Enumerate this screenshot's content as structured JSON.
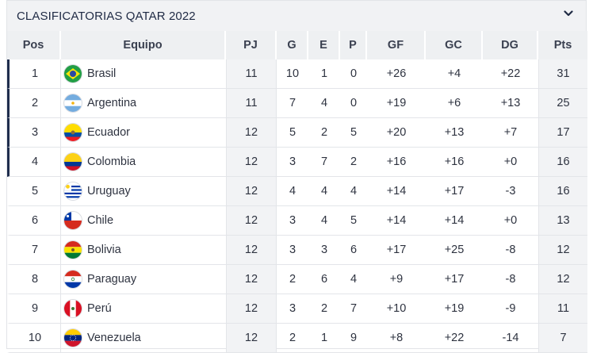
{
  "widget": {
    "title": "CLASIFICATORIAS QATAR 2022",
    "toggle_icon": "chevron-down-icon"
  },
  "columns": {
    "pos": "Pos",
    "team": "Equipo",
    "pj": "PJ",
    "g": "G",
    "e": "E",
    "p": "P",
    "gf": "GF",
    "gc": "GC",
    "dg": "DG",
    "pts": "Pts"
  },
  "rows": [
    {
      "pos": "1",
      "team": "Brasil",
      "flag": "brazil-flag-icon",
      "pj": "11",
      "g": "10",
      "e": "1",
      "p": "0",
      "gf": "+26",
      "gc": "+4",
      "dg": "+22",
      "pts": "31"
    },
    {
      "pos": "2",
      "team": "Argentina",
      "flag": "argentina-flag-icon",
      "pj": "11",
      "g": "7",
      "e": "4",
      "p": "0",
      "gf": "+19",
      "gc": "+6",
      "dg": "+13",
      "pts": "25"
    },
    {
      "pos": "3",
      "team": "Ecuador",
      "flag": "ecuador-flag-icon",
      "pj": "12",
      "g": "5",
      "e": "2",
      "p": "5",
      "gf": "+20",
      "gc": "+13",
      "dg": "+7",
      "pts": "17"
    },
    {
      "pos": "4",
      "team": "Colombia",
      "flag": "colombia-flag-icon",
      "pj": "12",
      "g": "3",
      "e": "7",
      "p": "2",
      "gf": "+16",
      "gc": "+16",
      "dg": "+0",
      "pts": "16"
    },
    {
      "pos": "5",
      "team": "Uruguay",
      "flag": "uruguay-flag-icon",
      "pj": "12",
      "g": "4",
      "e": "4",
      "p": "4",
      "gf": "+14",
      "gc": "+17",
      "dg": "-3",
      "pts": "16"
    },
    {
      "pos": "6",
      "team": "Chile",
      "flag": "chile-flag-icon",
      "pj": "12",
      "g": "3",
      "e": "4",
      "p": "5",
      "gf": "+14",
      "gc": "+14",
      "dg": "+0",
      "pts": "13"
    },
    {
      "pos": "7",
      "team": "Bolivia",
      "flag": "bolivia-flag-icon",
      "pj": "12",
      "g": "3",
      "e": "3",
      "p": "6",
      "gf": "+17",
      "gc": "+25",
      "dg": "-8",
      "pts": "12"
    },
    {
      "pos": "8",
      "team": "Paraguay",
      "flag": "paraguay-flag-icon",
      "pj": "12",
      "g": "2",
      "e": "6",
      "p": "4",
      "gf": "+9",
      "gc": "+17",
      "dg": "-8",
      "pts": "12"
    },
    {
      "pos": "9",
      "team": "Perú",
      "flag": "peru-flag-icon",
      "pj": "12",
      "g": "3",
      "e": "2",
      "p": "7",
      "gf": "+10",
      "gc": "+19",
      "dg": "-9",
      "pts": "11"
    },
    {
      "pos": "10",
      "team": "Venezuela",
      "flag": "venezuela-flag-icon",
      "pj": "12",
      "g": "2",
      "e": "1",
      "p": "9",
      "gf": "+8",
      "gc": "+22",
      "dg": "-14",
      "pts": "7"
    }
  ],
  "colors": {
    "qualified_marker": "#1f2d4d",
    "header_bg": "#eef0f2",
    "title_bg": "#f1f2f4"
  }
}
